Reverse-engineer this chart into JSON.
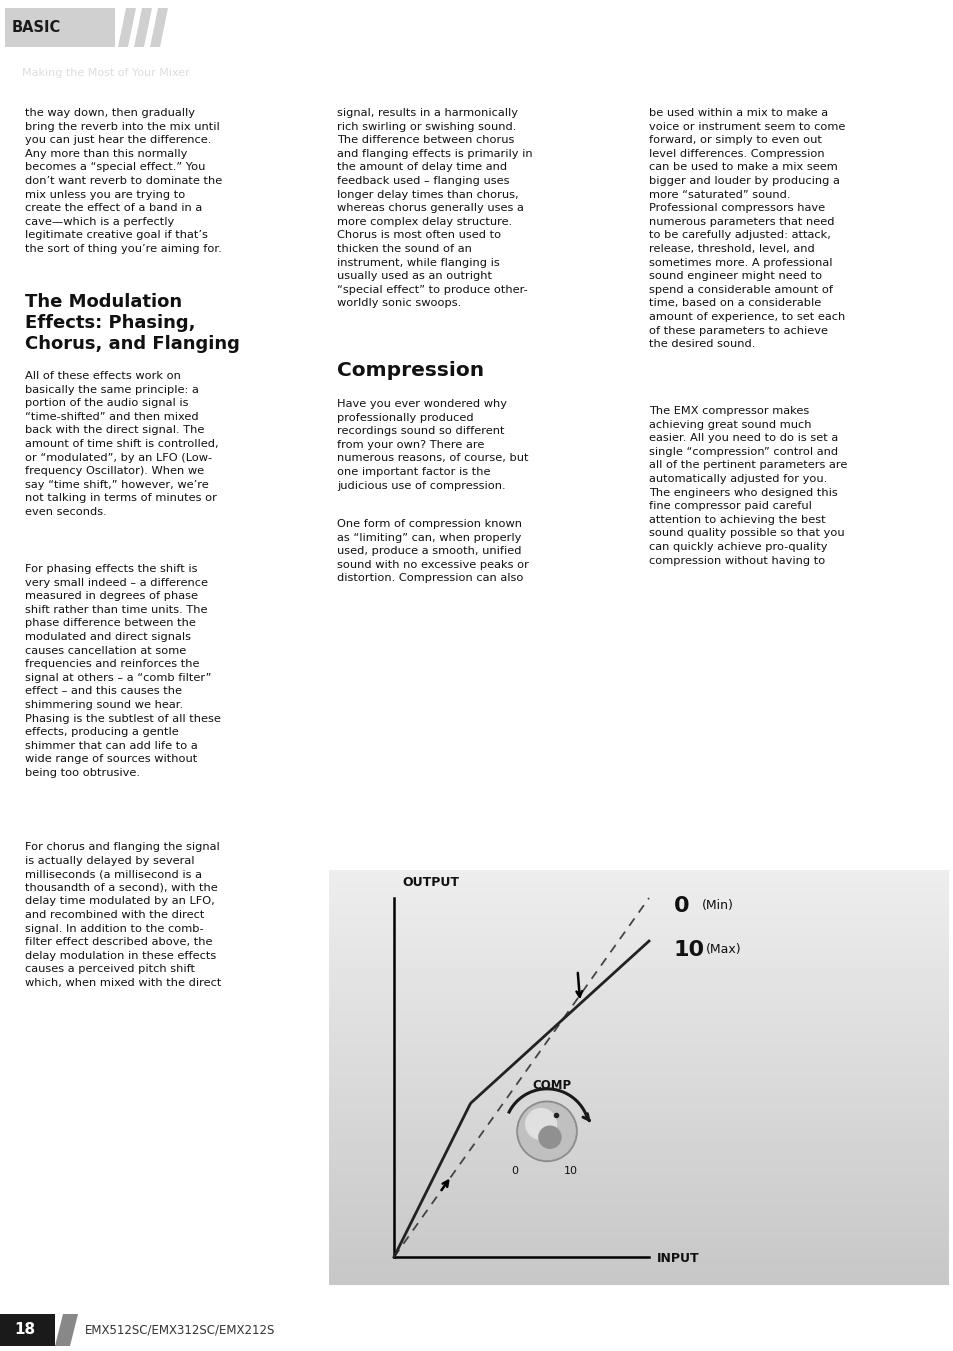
{
  "header_bg": "#6e6e6e",
  "header_text": "BASIC",
  "subheader_text": "Making the Most of Your Mixer",
  "page_bg": "#ffffff",
  "footer_text": "18",
  "footer_subtext": "EMX512SC/EMX312SC/EMX212S"
}
